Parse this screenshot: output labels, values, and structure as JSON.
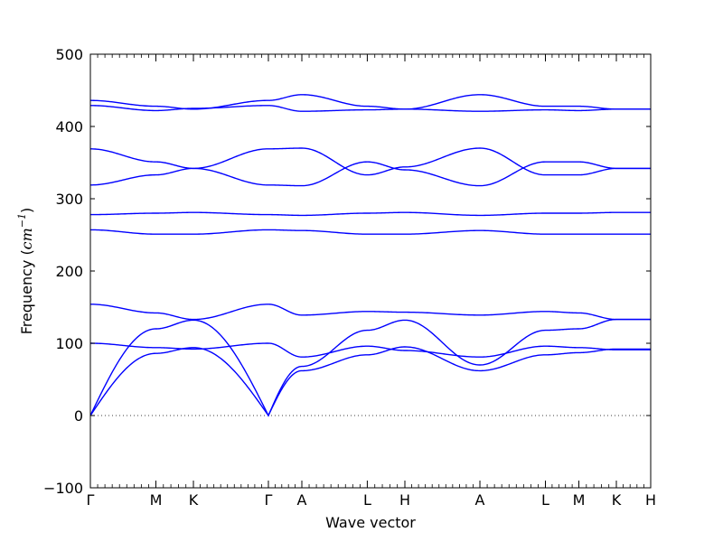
{
  "chart_data": {
    "type": "line",
    "title": "",
    "xlabel": "Wave vector",
    "ylabel_text": "Frequency (",
    "ylabel_unit_base": "cm",
    "ylabel_unit_exp": "−1",
    "ylabel_close": ")",
    "ylim": [
      -100,
      500
    ],
    "yticks": [
      -100,
      0,
      100,
      200,
      300,
      400,
      500
    ],
    "grid": false,
    "zero_line": true,
    "line_color": "#0000ff",
    "x_points": [
      {
        "label": "Γ",
        "x": 0
      },
      {
        "label": "M",
        "x": 0.1169
      },
      {
        "label": "K",
        "x": 0.1839
      },
      {
        "label": "Γ",
        "x": 0.3177
      },
      {
        "label": "A",
        "x": 0.3774
      },
      {
        "label": "L",
        "x": 0.4942
      },
      {
        "label": "H",
        "x": 0.5613
      },
      {
        "label": "A",
        "x": 0.6952
      },
      {
        "label": "L",
        "x": 0.8121
      },
      {
        "label": "M",
        "x": 0.8718
      },
      {
        "label": "K",
        "x": 0.9387
      },
      {
        "label": "H",
        "x": 1.0
      }
    ],
    "series": [
      {
        "values": [
          0,
          86,
          94,
          0,
          62,
          84,
          95,
          62,
          84,
          87,
          92,
          92
        ]
      },
      {
        "values": [
          0,
          120,
          132,
          0,
          68,
          118,
          132,
          70,
          118,
          120,
          133,
          133
        ]
      },
      {
        "values": [
          100,
          94,
          92,
          100,
          81,
          96,
          90,
          81,
          96,
          94,
          91,
          91
        ]
      },
      {
        "values": [
          154,
          142,
          133,
          154,
          139,
          144,
          143,
          139,
          144,
          142,
          133,
          133
        ]
      },
      {
        "values": [
          257,
          251,
          251,
          257,
          256,
          251,
          251,
          256,
          251,
          251,
          251,
          251
        ]
      },
      {
        "values": [
          278,
          280,
          281,
          278,
          277,
          280,
          281,
          277,
          280,
          280,
          281,
          281
        ]
      },
      {
        "values": [
          319,
          333,
          342,
          369,
          370,
          333,
          344,
          370,
          333,
          333,
          342,
          342
        ]
      },
      {
        "values": [
          369,
          351,
          342,
          319,
          318,
          351,
          340,
          318,
          351,
          351,
          342,
          342
        ]
      },
      {
        "values": [
          429,
          422,
          425,
          429,
          421,
          423,
          424,
          421,
          423,
          422,
          424,
          424
        ]
      },
      {
        "values": [
          436,
          428,
          424,
          436,
          444,
          428,
          424,
          444,
          428,
          428,
          424,
          424
        ]
      }
    ]
  }
}
